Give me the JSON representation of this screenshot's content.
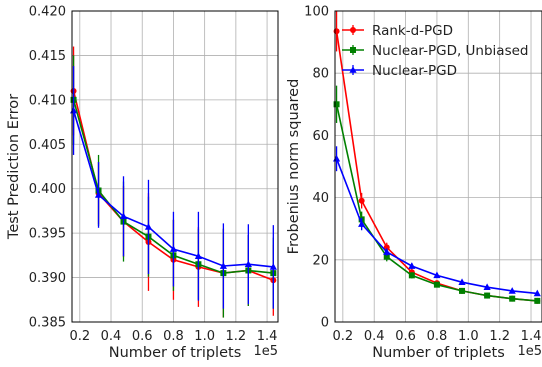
{
  "chart_data": [
    {
      "type": "line",
      "xlabel": "Number of triplets",
      "ylabel": "Test Prediction Error",
      "x_offset_label": "1e5",
      "xlim": [
        0.15,
        1.47
      ],
      "ylim": [
        0.385,
        0.42
      ],
      "xticks": [
        "0.2",
        "0.4",
        "0.6",
        "0.8",
        "1.0",
        "1.2",
        "1.4"
      ],
      "yticks": [
        "0.385",
        "0.390",
        "0.395",
        "0.400",
        "0.405",
        "0.410",
        "0.415",
        "0.420"
      ],
      "grid": true,
      "x": [
        0.16,
        0.32,
        0.48,
        0.64,
        0.8,
        0.96,
        1.12,
        1.28,
        1.44
      ],
      "series": [
        {
          "name": "Rank-d-PGD",
          "color": "#ff0000",
          "marker": "circle",
          "values": [
            0.411,
            0.3995,
            0.3963,
            0.394,
            0.392,
            0.3912,
            0.3905,
            0.3908,
            0.3897
          ],
          "err": [
            0.005,
            0.0035,
            0.004,
            0.0055,
            0.0045,
            0.0045,
            0.005,
            0.004,
            0.004
          ]
        },
        {
          "name": "Nuclear-PGD, Unbiased",
          "color": "#008000",
          "marker": "square",
          "values": [
            0.41,
            0.3998,
            0.3963,
            0.3946,
            0.3925,
            0.3915,
            0.3905,
            0.3908,
            0.3905
          ],
          "err": [
            0.005,
            0.004,
            0.0045,
            0.0045,
            0.004,
            0.004,
            0.005,
            0.004,
            0.004
          ]
        },
        {
          "name": "Nuclear-PGD",
          "color": "#0000ff",
          "marker": "triangle",
          "values": [
            0.4088,
            0.3993,
            0.3969,
            0.3957,
            0.3932,
            0.3924,
            0.3913,
            0.3915,
            0.3912
          ],
          "err": [
            0.005,
            0.0037,
            0.0045,
            0.0053,
            0.0042,
            0.005,
            0.0048,
            0.0045,
            0.0047
          ]
        }
      ]
    },
    {
      "type": "line",
      "xlabel": "Number of triplets",
      "ylabel": "Frobenius norm squared",
      "x_offset_label": "1e5",
      "xlim": [
        0.15,
        1.47
      ],
      "ylim": [
        0,
        100
      ],
      "xticks": [
        "0.2",
        "0.4",
        "0.6",
        "0.8",
        "1.0",
        "1.2",
        "1.4"
      ],
      "yticks": [
        "0",
        "20",
        "40",
        "60",
        "80",
        "100"
      ],
      "grid": true,
      "legend": "top-right",
      "x": [
        0.16,
        0.32,
        0.48,
        0.64,
        0.8,
        0.96,
        1.12,
        1.28,
        1.44
      ],
      "series": [
        {
          "name": "Rank-d-PGD",
          "color": "#ff0000",
          "marker": "circle",
          "values": [
            93.5,
            39.0,
            24.0,
            16.0,
            12.5,
            10.0,
            8.5,
            7.5,
            6.8
          ],
          "err": [
            6.5,
            2.5,
            1.5,
            1.0,
            0.8,
            0.6,
            0.5,
            0.4,
            0.4
          ]
        },
        {
          "name": "Nuclear-PGD, Unbiased",
          "color": "#008000",
          "marker": "square",
          "values": [
            70.0,
            33.0,
            21.0,
            15.0,
            12.0,
            10.0,
            8.5,
            7.5,
            6.8
          ],
          "err": [
            6.0,
            2.5,
            1.5,
            1.0,
            0.8,
            0.6,
            0.5,
            0.4,
            0.4
          ]
        },
        {
          "name": "Nuclear-PGD",
          "color": "#0000ff",
          "marker": "triangle",
          "values": [
            52.5,
            31.5,
            22.5,
            18.0,
            15.0,
            12.8,
            11.2,
            10.0,
            9.2
          ],
          "err": [
            4.0,
            2.0,
            1.2,
            1.0,
            0.8,
            0.6,
            0.5,
            0.4,
            0.4
          ]
        }
      ]
    }
  ]
}
